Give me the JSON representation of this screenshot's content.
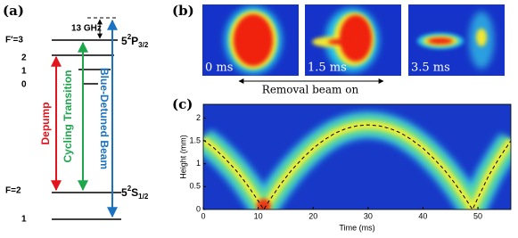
{
  "panel_a": {
    "label": "(a)",
    "splitting": "13 GHz",
    "upper_levels": [
      "F′=3",
      "2",
      "1",
      "0"
    ],
    "upper_state": {
      "n": "5",
      "sup": "2",
      "letter": "P",
      "sub": "3/2"
    },
    "lower_levels": [
      "F=2",
      "1"
    ],
    "lower_state": {
      "n": "5",
      "sup": "2",
      "letter": "S",
      "sub": "1/2"
    },
    "transitions": [
      {
        "name": "Depump",
        "color": "#e3141c"
      },
      {
        "name": "Cycling Transition",
        "color": "#1ea64c"
      },
      {
        "name": "Blue-Detuned Beam",
        "color": "#1a72c0"
      }
    ]
  },
  "panel_b": {
    "label": "(b)",
    "frames": [
      "0 ms",
      "1.5 ms",
      "3.5 ms"
    ],
    "caption": "Removal beam on"
  },
  "chart_data": {
    "type": "line",
    "label": "(c)",
    "xlabel": "Time (ms)",
    "ylabel": "Height (mm)",
    "x": [
      0,
      2,
      4,
      6,
      8,
      10,
      11,
      12,
      14,
      16,
      18,
      20,
      22,
      24,
      26,
      28,
      30,
      32,
      34,
      36,
      38,
      40,
      42,
      44,
      46,
      48,
      49,
      50,
      52,
      54,
      56
    ],
    "values": [
      1.52,
      1.34,
      1.11,
      0.85,
      0.54,
      0.19,
      0,
      0.19,
      0.54,
      0.85,
      1.11,
      1.34,
      1.52,
      1.67,
      1.77,
      1.83,
      1.85,
      1.83,
      1.77,
      1.67,
      1.52,
      1.34,
      1.11,
      0.85,
      0.54,
      0.19,
      0,
      0.25,
      0.75,
      1.15,
      1.5
    ],
    "color": "#000000",
    "xlim": [
      0,
      56
    ],
    "ylim": [
      0,
      2.3
    ],
    "xticks": [
      0,
      10,
      20,
      30,
      40,
      50
    ],
    "yticks": [
      0,
      0.5,
      1,
      1.5,
      2
    ]
  }
}
